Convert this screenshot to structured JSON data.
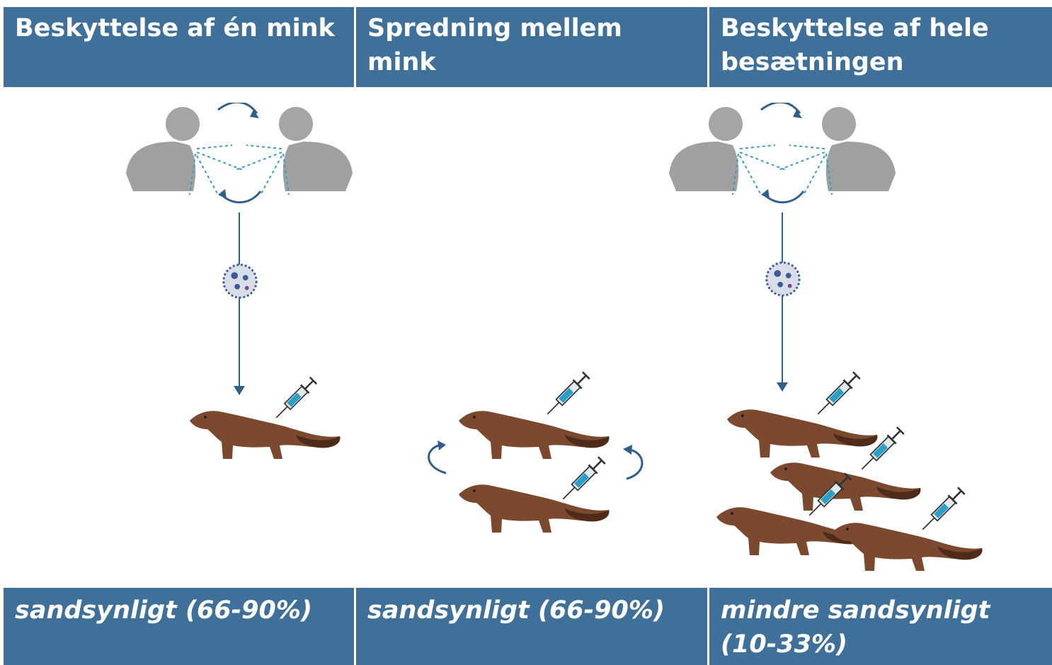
{
  "columns": [
    {
      "header": "Beskyttelse af én mink",
      "footer": "sandsynligt (66-90%)"
    },
    {
      "header": "Spredning mellem mink",
      "footer": "sandsynligt (66-90%)"
    },
    {
      "header": "Beskyttelse af hele besætningen",
      "footer": "mindre sandsynligt (10-33%)"
    }
  ]
}
